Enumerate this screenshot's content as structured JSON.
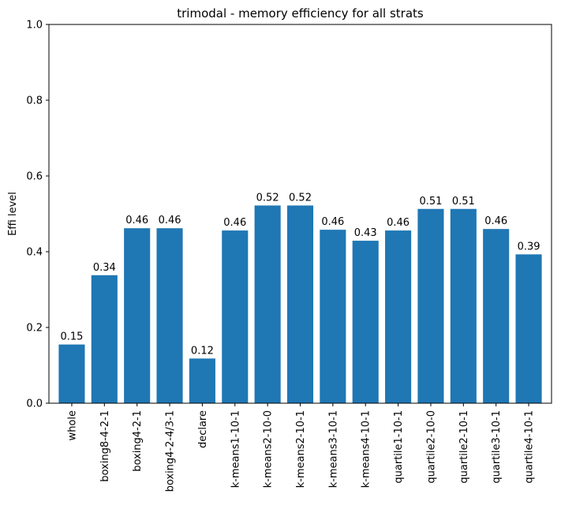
{
  "chart_data": {
    "type": "bar",
    "title": "trimodal - memory efficiency for all strats",
    "xlabel": "",
    "ylabel": "Effi level",
    "ylim": [
      0,
      1.0
    ],
    "yticks": [
      "0.0",
      "0.2",
      "0.4",
      "0.6",
      "0.8",
      "1.0"
    ],
    "categories": [
      "whole",
      "boxing8-4-2-1",
      "boxing4-2-1",
      "boxing4-2-4/3-1",
      "declare",
      "k-means1-10-1",
      "k-means2-10-0",
      "k-means2-10-1",
      "k-means3-10-1",
      "k-means4-10-1",
      "quartile1-10-1",
      "quartile2-10-0",
      "quartile2-10-1",
      "quartile3-10-1",
      "quartile4-10-1"
    ],
    "values": [
      0.155,
      0.338,
      0.462,
      0.462,
      0.118,
      0.456,
      0.522,
      0.522,
      0.458,
      0.429,
      0.456,
      0.513,
      0.513,
      0.46,
      0.393
    ],
    "data_labels": [
      "0.15",
      "0.34",
      "0.46",
      "0.46",
      "0.12",
      "0.46",
      "0.52",
      "0.52",
      "0.46",
      "0.43",
      "0.46",
      "0.51",
      "0.51",
      "0.46",
      "0.39"
    ],
    "bar_color": "#1f77b4",
    "grid": false,
    "legend": "none"
  }
}
